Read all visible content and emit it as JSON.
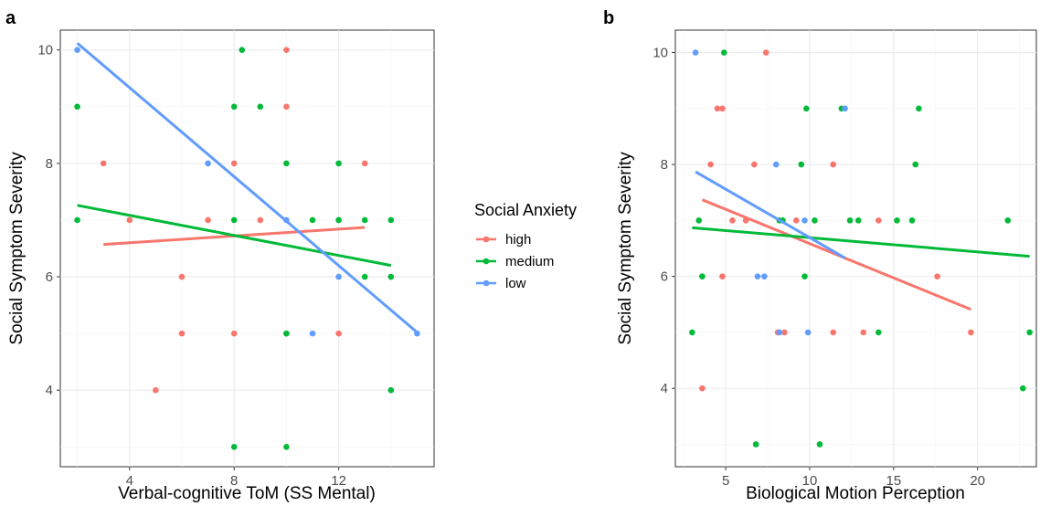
{
  "chart_data": [
    {
      "type": "scatter",
      "tag": "a",
      "xlabel": "Verbal-cognitive ToM (SS Mental)",
      "ylabel": "Social Symptom Severity",
      "xlim": [
        1.35,
        15.65
      ],
      "ylim": [
        2.65,
        10.35
      ],
      "xticks": [
        4,
        8,
        12
      ],
      "yticks": [
        4,
        6,
        8,
        10
      ],
      "grid": true,
      "series": [
        {
          "name": "high",
          "color": "#F8766D",
          "points": [
            [
              3,
              8
            ],
            [
              4,
              7
            ],
            [
              5,
              4
            ],
            [
              6,
              6
            ],
            [
              6,
              5
            ],
            [
              7,
              7
            ],
            [
              8,
              8
            ],
            [
              8,
              5
            ],
            [
              9,
              7
            ],
            [
              10,
              10
            ],
            [
              10,
              9
            ],
            [
              10,
              5
            ],
            [
              12,
              7
            ],
            [
              12,
              5
            ],
            [
              13,
              8
            ]
          ],
          "fit": [
            [
              3,
              6.57
            ],
            [
              13,
              6.87
            ]
          ]
        },
        {
          "name": "medium",
          "color": "#00BA38",
          "points": [
            [
              2,
              9
            ],
            [
              2,
              7
            ],
            [
              8,
              9
            ],
            [
              8,
              7
            ],
            [
              8,
              3
            ],
            [
              8.3,
              10
            ],
            [
              9,
              9
            ],
            [
              10,
              8
            ],
            [
              10,
              5
            ],
            [
              10,
              3
            ],
            [
              11,
              7
            ],
            [
              12,
              8
            ],
            [
              12,
              7
            ],
            [
              13,
              7
            ],
            [
              13,
              6
            ],
            [
              14,
              7
            ],
            [
              14,
              6
            ],
            [
              14,
              4
            ]
          ],
          "fit": [
            [
              2,
              7.26
            ],
            [
              14,
              6.2
            ]
          ]
        },
        {
          "name": "low",
          "color": "#619CFF",
          "points": [
            [
              2,
              10
            ],
            [
              7,
              8
            ],
            [
              10,
              7
            ],
            [
              11,
              5
            ],
            [
              12,
              6
            ],
            [
              15,
              5
            ]
          ],
          "fit": [
            [
              2,
              10.12
            ],
            [
              15,
              5.02
            ]
          ]
        }
      ]
    },
    {
      "type": "scatter",
      "tag": "b",
      "xlabel": "Biological Motion Perception",
      "ylabel": "Social Symptom Severity",
      "xlim": [
        2.0,
        23.5
      ],
      "ylim": [
        2.6,
        10.4
      ],
      "xticks": [
        5,
        10,
        15,
        20
      ],
      "yticks": [
        4,
        6,
        8,
        10
      ],
      "grid": true,
      "series": [
        {
          "name": "high",
          "color": "#F8766D",
          "points": [
            [
              3.6,
              4
            ],
            [
              4.1,
              8
            ],
            [
              4.5,
              9
            ],
            [
              4.8,
              9
            ],
            [
              4.8,
              6
            ],
            [
              5.4,
              7
            ],
            [
              6.2,
              7
            ],
            [
              6.7,
              8
            ],
            [
              7.4,
              10
            ],
            [
              8.1,
              5
            ],
            [
              8.5,
              5
            ],
            [
              9.2,
              7
            ],
            [
              11.4,
              8
            ],
            [
              11.4,
              5
            ],
            [
              13.2,
              5
            ],
            [
              14.1,
              7
            ],
            [
              17.6,
              6
            ],
            [
              19.6,
              5
            ]
          ],
          "fit": [
            [
              3.6,
              7.37
            ],
            [
              19.6,
              5.41
            ]
          ]
        },
        {
          "name": "medium",
          "color": "#00BA38",
          "points": [
            [
              3.0,
              5
            ],
            [
              3.4,
              7
            ],
            [
              3.6,
              6
            ],
            [
              4.9,
              10
            ],
            [
              6.8,
              3
            ],
            [
              8.2,
              7
            ],
            [
              8.4,
              7
            ],
            [
              9.5,
              8
            ],
            [
              9.7,
              6
            ],
            [
              9.8,
              9
            ],
            [
              10.3,
              7
            ],
            [
              10.6,
              3
            ],
            [
              11.9,
              9
            ],
            [
              12.4,
              7
            ],
            [
              12.9,
              7
            ],
            [
              14.1,
              5
            ],
            [
              15.2,
              7
            ],
            [
              16.1,
              7
            ],
            [
              16.3,
              8
            ],
            [
              16.5,
              9
            ],
            [
              21.8,
              7
            ],
            [
              22.7,
              4
            ],
            [
              23.1,
              5
            ]
          ],
          "fit": [
            [
              3.0,
              6.87
            ],
            [
              23.1,
              6.36
            ]
          ]
        },
        {
          "name": "low",
          "color": "#619CFF",
          "points": [
            [
              3.2,
              10
            ],
            [
              6.9,
              6
            ],
            [
              7.3,
              6
            ],
            [
              8.0,
              8
            ],
            [
              8.2,
              5
            ],
            [
              9.7,
              7
            ],
            [
              9.9,
              5
            ],
            [
              12.1,
              9
            ]
          ],
          "fit": [
            [
              3.2,
              7.87
            ],
            [
              12.1,
              6.33
            ]
          ]
        }
      ]
    }
  ],
  "legend": {
    "title": "Social Anxiety",
    "items": [
      {
        "label": "high",
        "color": "#F8766D"
      },
      {
        "label": "medium",
        "color": "#00BA38"
      },
      {
        "label": "low",
        "color": "#619CFF"
      }
    ]
  }
}
